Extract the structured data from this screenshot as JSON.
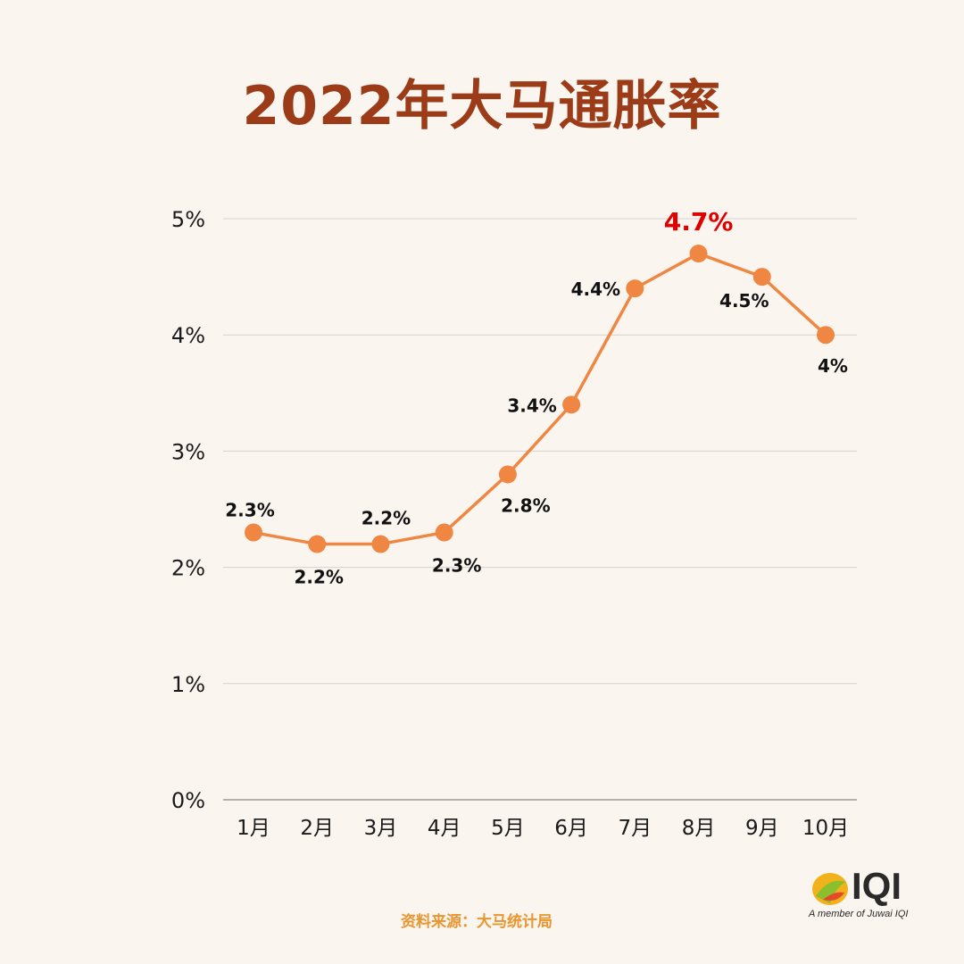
{
  "title": "2022年大马通胀率",
  "source": "资料来源：大马统计局",
  "logo": {
    "text": "IQI",
    "tagline": "A member of Juwai IQI",
    "icon": "iqi-leaf-logo"
  },
  "colors": {
    "line": "#ef8742",
    "highlight": "#e00000",
    "title": "#9b3b17",
    "source": "#e8962f"
  },
  "chart_data": {
    "type": "line",
    "categories": [
      "1月",
      "2月",
      "3月",
      "4月",
      "5月",
      "6月",
      "7月",
      "8月",
      "9月",
      "10月"
    ],
    "values": [
      2.3,
      2.2,
      2.2,
      2.3,
      2.8,
      3.4,
      4.4,
      4.7,
      4.5,
      4.0
    ],
    "data_labels": [
      "2.3%",
      "2.2%",
      "2.2%",
      "2.3%",
      "2.8%",
      "3.4%",
      "4.4%",
      "4.7%",
      "4.5%",
      "4%"
    ],
    "highlight_index": 7,
    "yticks": [
      0,
      1,
      2,
      3,
      4,
      5
    ],
    "ytick_labels": [
      "0%",
      "1%",
      "2%",
      "3%",
      "4%",
      "5%"
    ],
    "ylim": [
      0,
      5
    ],
    "grid": true,
    "legend": "none"
  }
}
